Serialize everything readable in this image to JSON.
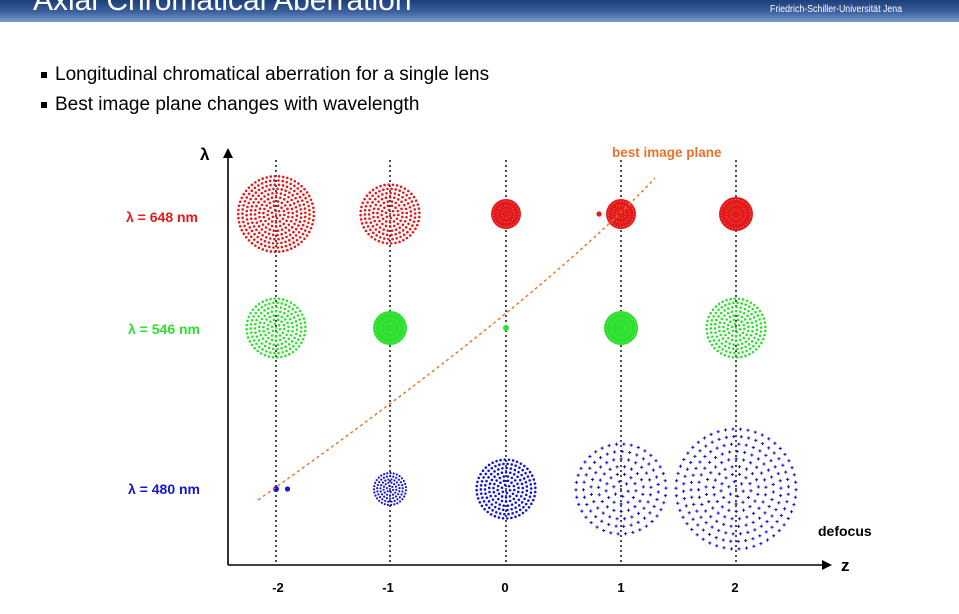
{
  "header": {
    "title": "Axial Chromatical Aberration",
    "affiliation": "Friedrich-Schiller-Universität Jena"
  },
  "bullets": [
    "Longitudinal chromatical aberration for a single lens",
    "Best image plane changes with wavelength"
  ],
  "diagram": {
    "y_axis_label": "λ",
    "x_axis_label": "z",
    "x_axis_caption": "defocus",
    "curve_label": "best image plane",
    "curve_color": "#e8722a",
    "z_ticks": [
      "-2",
      "-1",
      "0",
      "1",
      "2"
    ],
    "rows": [
      {
        "label": "λ = 648 nm",
        "color": "#e41a1a",
        "spot_style": "dots",
        "dense_spot_style": "dots",
        "spot_scale": [
          0.55,
          0.55,
          0.0,
          0.0,
          0.0
        ]
      },
      {
        "label": "λ = 546 nm",
        "color": "#2ee02e",
        "spot_style": "dots",
        "dense_spot_style": "dots",
        "spot_scale": [
          0.55,
          0.55,
          0.0,
          0.0,
          0.0
        ]
      },
      {
        "label": "λ = 480 nm",
        "color": "#1414d4",
        "spot_style": "crosses",
        "dense_spot_style": "dots",
        "spot_scale": [
          0.0,
          0.0,
          0.0,
          0.0,
          0.0
        ]
      }
    ],
    "best_focus_z": [
      0.8,
      0.0,
      -1.9
    ]
  }
}
